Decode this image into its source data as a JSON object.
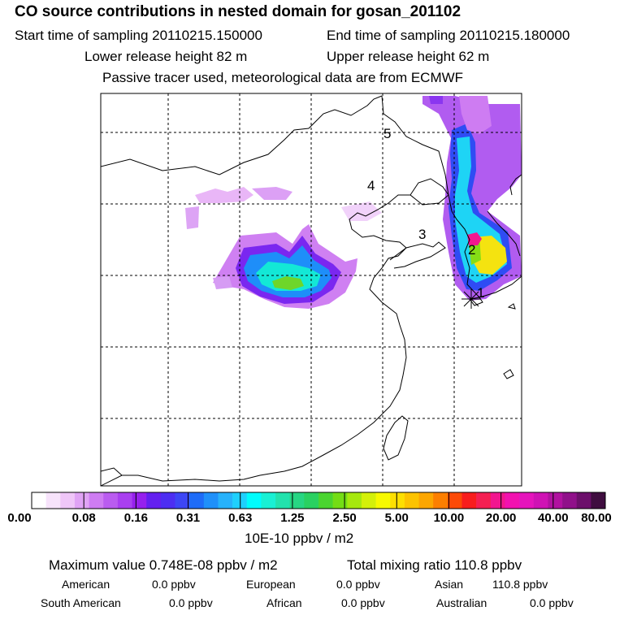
{
  "header": {
    "title": "CO  source contributions in nested domain for gosan_201102",
    "start_time": "Start time of sampling 20110215.150000",
    "end_time": "End time of sampling 20110215.180000",
    "lower_release": "Lower release height   82 m",
    "upper_release": "Upper release height   62 m",
    "note": "Passive tracer used, meteorological data are from ECMWF"
  },
  "map": {
    "trajectory_labels": [
      "1",
      "2",
      "3",
      "4",
      "5"
    ],
    "release_marker": "release-site"
  },
  "colorbar": {
    "ticks": [
      "0.00",
      "0.08",
      "0.16",
      "0.31",
      "0.63",
      "1.25",
      "2.50",
      "5.00",
      "10.00",
      "20.00",
      "40.00",
      "80.00"
    ],
    "colors": [
      "#ffffff",
      "#f7e3fb",
      "#efc6f8",
      "#e0a3f5",
      "#ce7cf2",
      "#ba5cf0",
      "#a93ff0",
      "#9620ee",
      "#6420f0",
      "#4d2ef2",
      "#3d46f5",
      "#1e6cf8",
      "#1f90fa",
      "#27b2fb",
      "#1fd0fd",
      "#00fcfc",
      "#19f0d4",
      "#22e2ad",
      "#27d683",
      "#2ad161",
      "#4ad530",
      "#74dd15",
      "#a6e80e",
      "#d4f00a",
      "#f7f900",
      "#fddf00",
      "#fcc300",
      "#fca600",
      "#fc7f00",
      "#fc4a07",
      "#f81d1d",
      "#f41f52",
      "#f2168f",
      "#f212b0",
      "#e514bc",
      "#cf12b4",
      "#b111a0",
      "#90108a",
      "#6c0f6b",
      "#3f0d3f"
    ],
    "units": "10E-10 ppbv / m2"
  },
  "summary": {
    "max_label": "Maximum value  0.748E-08 ppbv / m2",
    "total_label": "Total mixing ratio      110.8 ppbv",
    "american_label": "American",
    "american_value": "0.0 ppbv",
    "european_label": "European",
    "european_value": "0.0 ppbv",
    "asian_label": "Asian",
    "asian_value": "110.8 ppbv",
    "south_american_label": "South American",
    "south_american_value": "0.0 ppbv",
    "african_label": "African",
    "african_value": "0.0 ppbv",
    "australian_label": "Australian",
    "australian_value": "0.0 ppbv"
  }
}
